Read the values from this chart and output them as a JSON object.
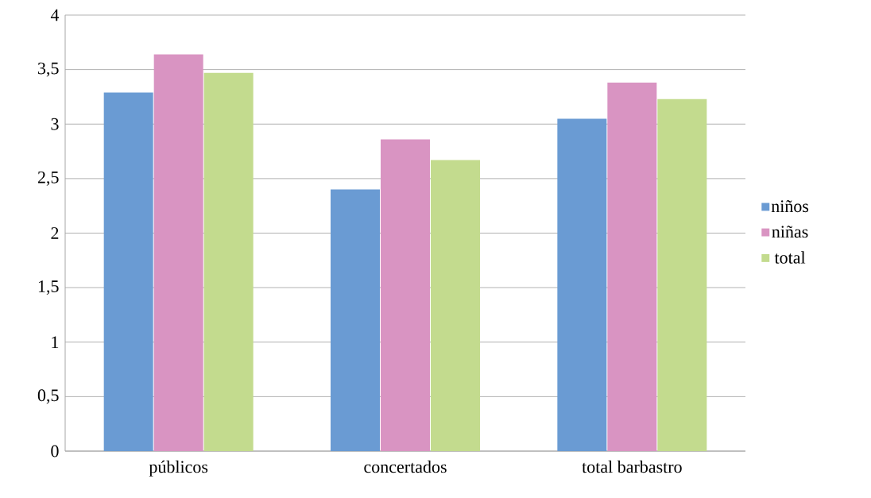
{
  "chart_data": {
    "type": "bar",
    "categories": [
      "públicos",
      "concertados",
      "total barbastro"
    ],
    "series": [
      {
        "name": "niños",
        "color": "#6a9bd3",
        "values": [
          3.29,
          2.4,
          3.05
        ]
      },
      {
        "name": "niñas",
        "color": "#d994c2",
        "values": [
          3.64,
          2.86,
          3.38
        ]
      },
      {
        "name": "total",
        "color": "#c3db8e",
        "values": [
          3.47,
          2.67,
          3.23
        ]
      }
    ],
    "ylim": [
      0,
      4
    ],
    "yticks": [
      0,
      {
        "value": 0.5,
        "label": "0,5"
      },
      1,
      {
        "value": 1.5,
        "label": "1,5"
      },
      2,
      {
        "value": 2.5,
        "label": "2,5"
      },
      3,
      {
        "value": 3.5,
        "label": "3,5"
      },
      4
    ],
    "grid": "y",
    "legend": "right"
  }
}
